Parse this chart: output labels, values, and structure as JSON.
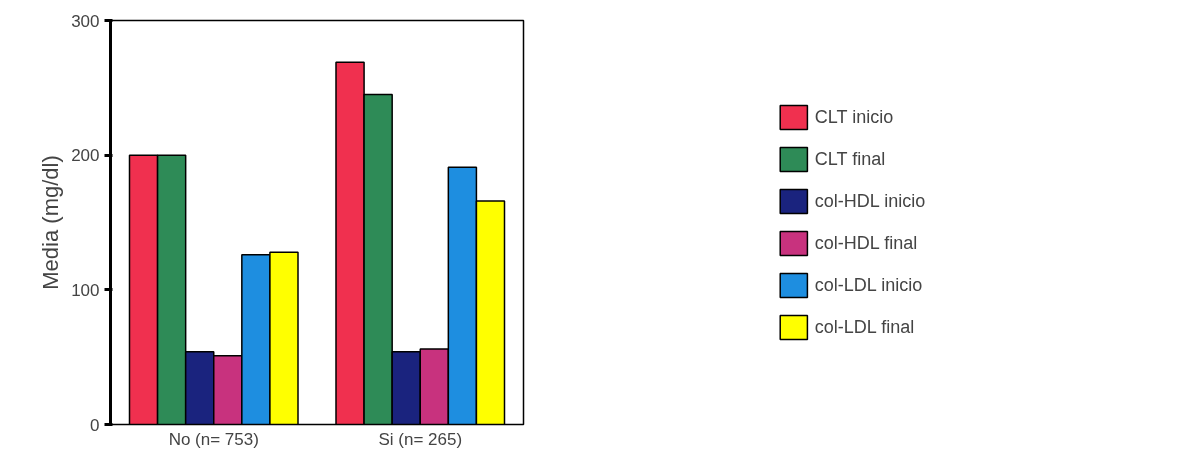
{
  "chart_data": {
    "type": "bar",
    "ylabel": "Media (mg/dl)",
    "categories": [
      "No (n= 753)",
      "Si (n= 265)"
    ],
    "ylim": [
      0,
      300
    ],
    "yticks": [
      0,
      100,
      200,
      300
    ],
    "grid": false,
    "legend": "right",
    "series": [
      {
        "name": "CLT inicio",
        "color": "#f0304f",
        "values": [
          200,
          269
        ]
      },
      {
        "name": "CLT final",
        "color": "#2e8b57",
        "values": [
          200,
          245
        ]
      },
      {
        "name": "col-HDL inicio",
        "color": "#1a237e",
        "values": [
          54,
          54
        ]
      },
      {
        "name": "col-HDL final",
        "color": "#c8327e",
        "values": [
          51,
          56
        ]
      },
      {
        "name": "col-LDL inicio",
        "color": "#1e8ee0",
        "values": [
          126,
          191
        ]
      },
      {
        "name": "col-LDL final",
        "color": "#ffff00",
        "values": [
          128,
          166
        ]
      }
    ]
  }
}
